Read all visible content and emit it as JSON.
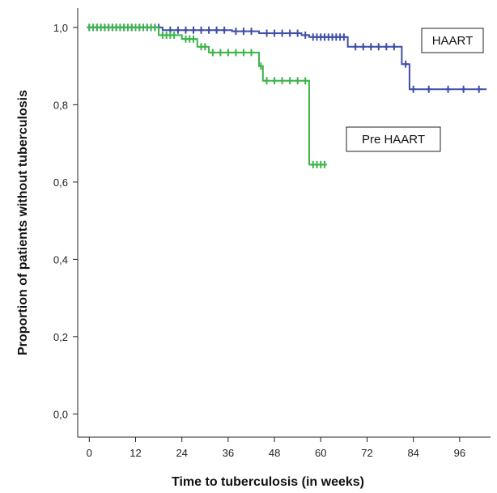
{
  "chart_data": {
    "type": "line",
    "subtype": "kaplan-meier",
    "title": "",
    "xlabel": "Time to tuberculosis (in weeks)",
    "ylabel": "Proportion of patients without tuberculosis",
    "xlim": [
      -3,
      104
    ],
    "ylim": [
      -0.06,
      1.05
    ],
    "xticks": [
      0,
      12,
      24,
      36,
      48,
      60,
      72,
      84,
      96
    ],
    "xtick_labels": [
      "0",
      "12",
      "24",
      "36",
      "48",
      "60",
      "72",
      "84",
      "96"
    ],
    "yticks": [
      0.0,
      0.2,
      0.4,
      0.6,
      0.8,
      1.0
    ],
    "ytick_labels": [
      "0,0",
      "0,2",
      "0,4",
      "0,6",
      "0,8",
      "1,0"
    ],
    "grid": false,
    "series": [
      {
        "name": "HAART",
        "color": "#3f4fa8",
        "steps": [
          [
            0,
            1.0
          ],
          [
            19,
            0.993
          ],
          [
            37,
            0.99
          ],
          [
            44,
            0.985
          ],
          [
            55,
            0.98
          ],
          [
            57,
            0.975
          ],
          [
            67,
            0.95
          ],
          [
            81,
            0.905
          ],
          [
            83,
            0.84
          ],
          [
            103,
            0.84
          ]
        ],
        "censored": [
          [
            0,
            1.0
          ],
          [
            1,
            1.0
          ],
          [
            2,
            1.0
          ],
          [
            3,
            1.0
          ],
          [
            4,
            1.0
          ],
          [
            5,
            1.0
          ],
          [
            6,
            1.0
          ],
          [
            7,
            1.0
          ],
          [
            8,
            1.0
          ],
          [
            9,
            1.0
          ],
          [
            10,
            1.0
          ],
          [
            11,
            1.0
          ],
          [
            12,
            1.0
          ],
          [
            13,
            1.0
          ],
          [
            14,
            1.0
          ],
          [
            15,
            1.0
          ],
          [
            16,
            1.0
          ],
          [
            17,
            1.0
          ],
          [
            18,
            1.0
          ],
          [
            21,
            0.993
          ],
          [
            23,
            0.993
          ],
          [
            25,
            0.993
          ],
          [
            27,
            0.993
          ],
          [
            29,
            0.993
          ],
          [
            31,
            0.993
          ],
          [
            33,
            0.993
          ],
          [
            35,
            0.993
          ],
          [
            38,
            0.99
          ],
          [
            40,
            0.99
          ],
          [
            42,
            0.99
          ],
          [
            46,
            0.985
          ],
          [
            48,
            0.985
          ],
          [
            50,
            0.985
          ],
          [
            52,
            0.985
          ],
          [
            54,
            0.985
          ],
          [
            56,
            0.98
          ],
          [
            58,
            0.975
          ],
          [
            59,
            0.975
          ],
          [
            60,
            0.975
          ],
          [
            61,
            0.975
          ],
          [
            62,
            0.975
          ],
          [
            63,
            0.975
          ],
          [
            64,
            0.975
          ],
          [
            65,
            0.975
          ],
          [
            66,
            0.975
          ],
          [
            69,
            0.95
          ],
          [
            71,
            0.95
          ],
          [
            73,
            0.95
          ],
          [
            75,
            0.95
          ],
          [
            77,
            0.95
          ],
          [
            79,
            0.95
          ],
          [
            82,
            0.905
          ],
          [
            84,
            0.84
          ],
          [
            88,
            0.84
          ],
          [
            93,
            0.84
          ],
          [
            97,
            0.84
          ],
          [
            101,
            0.84
          ]
        ]
      },
      {
        "name": "Pre HAART",
        "color": "#3cb44b",
        "steps": [
          [
            0,
            1.0
          ],
          [
            18,
            0.98
          ],
          [
            24,
            0.97
          ],
          [
            28,
            0.95
          ],
          [
            31,
            0.935
          ],
          [
            44,
            0.9
          ],
          [
            45,
            0.862
          ],
          [
            57,
            0.645
          ],
          [
            61,
            0.645
          ]
        ],
        "censored": [
          [
            0,
            1.0
          ],
          [
            1,
            1.0
          ],
          [
            2,
            1.0
          ],
          [
            3,
            1.0
          ],
          [
            4,
            1.0
          ],
          [
            5,
            1.0
          ],
          [
            6,
            1.0
          ],
          [
            7,
            1.0
          ],
          [
            8,
            1.0
          ],
          [
            9,
            1.0
          ],
          [
            10,
            1.0
          ],
          [
            11,
            1.0
          ],
          [
            12,
            1.0
          ],
          [
            13,
            1.0
          ],
          [
            14,
            1.0
          ],
          [
            15,
            1.0
          ],
          [
            16,
            1.0
          ],
          [
            17,
            1.0
          ],
          [
            19,
            0.98
          ],
          [
            20,
            0.98
          ],
          [
            21,
            0.98
          ],
          [
            22,
            0.98
          ],
          [
            25,
            0.97
          ],
          [
            26,
            0.97
          ],
          [
            27,
            0.97
          ],
          [
            29,
            0.95
          ],
          [
            30,
            0.95
          ],
          [
            32,
            0.935
          ],
          [
            34,
            0.935
          ],
          [
            36,
            0.935
          ],
          [
            38,
            0.935
          ],
          [
            40,
            0.935
          ],
          [
            42,
            0.935
          ],
          [
            44.5,
            0.9
          ],
          [
            46,
            0.862
          ],
          [
            48,
            0.862
          ],
          [
            50,
            0.862
          ],
          [
            52,
            0.862
          ],
          [
            54,
            0.862
          ],
          [
            56,
            0.862
          ],
          [
            58,
            0.645
          ],
          [
            59,
            0.645
          ],
          [
            60,
            0.645
          ],
          [
            61,
            0.645
          ]
        ]
      }
    ],
    "annotations": [
      {
        "text": "HAART",
        "series": "HAART"
      },
      {
        "text": "Pre HAART",
        "series": "Pre HAART"
      }
    ]
  }
}
